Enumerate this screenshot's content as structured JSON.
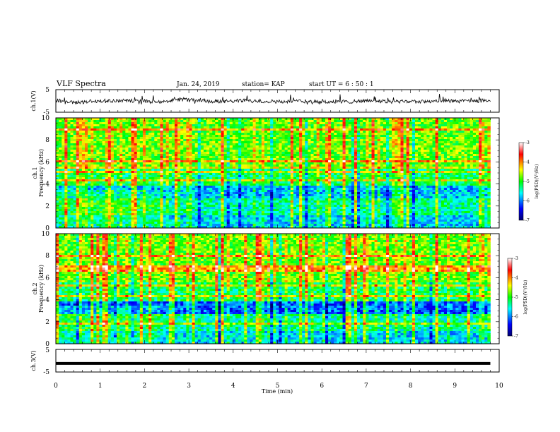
{
  "header": {
    "title": "VLF Spectra",
    "date": "Jan. 24, 2019",
    "station": "station= KAP",
    "start": "start  UT =  6 : 50 : 1"
  },
  "chart_data": [
    {
      "type": "line",
      "panel": "ch1-waveform",
      "ylabel": "ch.1(V)",
      "xlim": [
        0,
        10
      ],
      "ylim": [
        -5,
        5
      ],
      "ytick_labels": [
        "5",
        "-5"
      ],
      "note": "noisy waveform roughly between -2 and +2 V, data ends near 9.8 min"
    },
    {
      "type": "heatmap",
      "panel": "ch1-spectrogram",
      "ylabel": "ch.1\nFrequency (kHz)",
      "xlim": [
        0,
        10
      ],
      "ylim": [
        0,
        10
      ],
      "ytick_labels": [
        "0",
        "2",
        "4",
        "6",
        "8",
        "10"
      ],
      "colorbar": {
        "label": "log(PSD)(V²/Hz)",
        "range": [
          -7,
          -3
        ],
        "tick_labels": [
          "-3",
          "-4",
          "-5",
          "-6",
          "-7"
        ],
        "colors": [
          "#00006e",
          "#0000ff",
          "#00ffff",
          "#00ff00",
          "#ffff00",
          "#ff0000",
          "#ffffff"
        ]
      }
    },
    {
      "type": "heatmap",
      "panel": "ch2-spectrogram",
      "ylabel": "ch.2\nFrequency (kHz)",
      "xlim": [
        0,
        10
      ],
      "ylim": [
        0,
        10
      ],
      "ytick_labels": [
        "0",
        "2",
        "4",
        "6",
        "8",
        "10"
      ],
      "colorbar": {
        "label": "log(PSD)(V²/Hz)",
        "range": [
          -7,
          -3
        ],
        "tick_labels": [
          "-3",
          "-4",
          "-5",
          "-6",
          "-7"
        ],
        "colors": [
          "#00006e",
          "#0000ff",
          "#00ffff",
          "#00ff00",
          "#ffff00",
          "#ff0000",
          "#ffffff"
        ]
      }
    },
    {
      "type": "line",
      "panel": "ch3-waveform",
      "ylabel": "ch.3(V)",
      "xlim": [
        0,
        10
      ],
      "ylim": [
        -5,
        5
      ],
      "ytick_labels": [
        "5",
        "-5"
      ],
      "x": [
        0,
        9.8
      ],
      "y": [
        -1.2,
        -1.2
      ]
    }
  ],
  "xaxis": {
    "label": "Time (min)",
    "tick_labels": [
      "0",
      "1",
      "2",
      "3",
      "4",
      "5",
      "6",
      "7",
      "8",
      "9",
      "10"
    ]
  }
}
